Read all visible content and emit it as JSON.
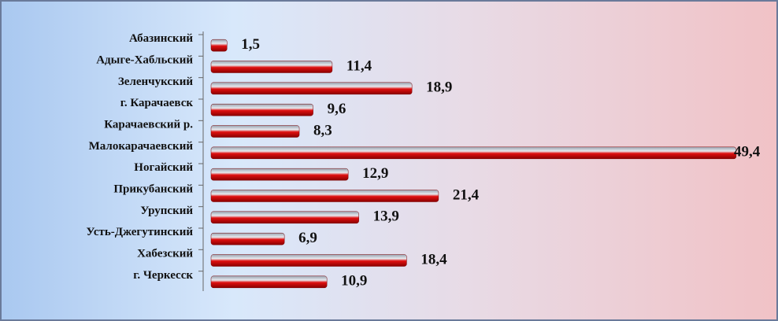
{
  "chart_data": {
    "type": "bar",
    "orientation": "horizontal",
    "categories": [
      "Абазинский",
      "Адыге-Хабльский",
      "Зеленчукский",
      "г. Карачаевск",
      "Карачаевский р.",
      "Малокарачаевский",
      "Ногайский",
      "Прикубанский",
      "Урупский",
      "Усть-Джегутинский",
      "Хабезский",
      "г. Черкесск"
    ],
    "values": [
      1.5,
      11.4,
      18.9,
      9.6,
      8.3,
      49.4,
      12.9,
      21.4,
      13.9,
      6.9,
      18.4,
      10.9
    ],
    "value_labels": [
      "1,5",
      "11,4",
      "18,9",
      "9,6",
      "8,3",
      "49,4",
      "12,9",
      "21,4",
      "13,9",
      "6,9",
      "18,4",
      "10,9"
    ],
    "color": "#d40000",
    "xlim": [
      0,
      50
    ]
  }
}
